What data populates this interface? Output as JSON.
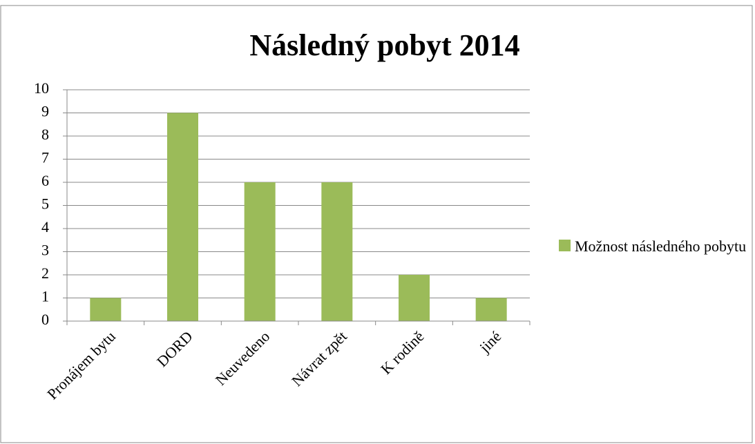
{
  "chart_data": {
    "type": "bar",
    "title": "Následný pobyt 2014",
    "categories": [
      "Pronájem bytu",
      "DORD",
      "Neuvedeno",
      "Návrat zpět",
      "K rodině",
      "jiné"
    ],
    "series": [
      {
        "name": "Možnost následného pobytu",
        "color": "#9bbb59",
        "values": [
          1,
          9,
          6,
          6,
          2,
          1
        ]
      }
    ],
    "ylim": [
      0,
      10
    ],
    "yticks": [
      0,
      1,
      2,
      3,
      4,
      5,
      6,
      7,
      8,
      9,
      10
    ],
    "grid": true,
    "legend": "right"
  }
}
